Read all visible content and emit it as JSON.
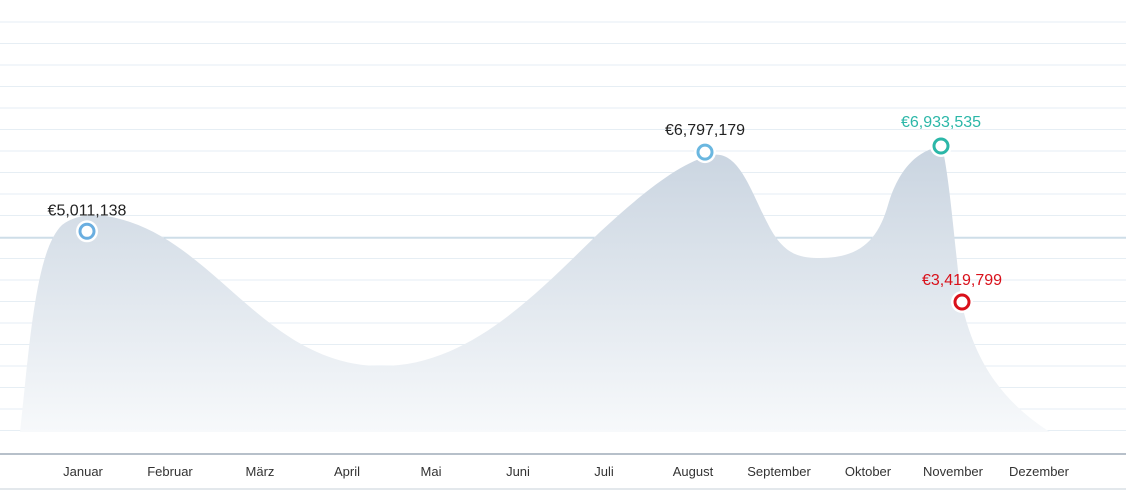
{
  "chart_data": {
    "type": "area",
    "categories": [
      "Januar",
      "Februar",
      "März",
      "April",
      "Mai",
      "Juni",
      "Juli",
      "August",
      "September",
      "Oktober",
      "November",
      "Dezember"
    ],
    "title": "",
    "xlabel": "",
    "ylabel": "",
    "grid": true,
    "legend": "none",
    "fill_color": "#cfd9e4",
    "highlights": [
      {
        "category": "Januar",
        "label": "€5,011,138",
        "value": 5011138,
        "color": "#6aaee0",
        "text_color": "#222222"
      },
      {
        "category": "August",
        "label": "€6,797,179",
        "value": 6797179,
        "color": "#6ab7e0",
        "text_color": "#222222"
      },
      {
        "category": "November",
        "label": "€6,933,535",
        "value": 6933535,
        "color": "#2bb7a8",
        "text_color": "#2bb7a8"
      },
      {
        "category": "November",
        "label": "€3,419,799",
        "value": 3419799,
        "color": "#d9101a",
        "text_color": "#d9101a"
      }
    ]
  }
}
